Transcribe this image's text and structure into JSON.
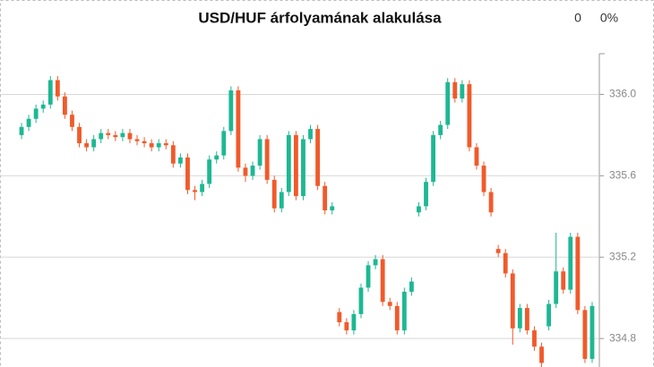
{
  "chart_data": {
    "type": "candlestick",
    "title": "USD/HUF árfolyamának alakulása",
    "change": "0",
    "change_percent": "0%",
    "up_color": "#1db893",
    "down_color": "#f15a2b",
    "ylim": [
      334.66,
      336.2
    ],
    "yticks": [
      334.8,
      335.2,
      335.6,
      {
        "value": 336,
        "label": "336.0"
      }
    ],
    "grid": true,
    "open": [
      335.8,
      335.84,
      335.88,
      335.93,
      335.95,
      336.07,
      335.99,
      335.9,
      335.84,
      335.76,
      335.74,
      335.78,
      335.81,
      335.8,
      335.79,
      335.81,
      335.78,
      335.77,
      335.76,
      335.74,
      335.76,
      335.75,
      335.66,
      335.69,
      335.53,
      335.52,
      335.56,
      335.68,
      335.7,
      335.82,
      336.02,
      335.64,
      335.6,
      335.65,
      335.78,
      335.58,
      335.44,
      335.52,
      335.8,
      335.5,
      335.78,
      335.83,
      335.55,
      335.43,
      334.93,
      334.88,
      334.84,
      334.92,
      335.05,
      335.16,
      335.19,
      334.98,
      334.96,
      334.84,
      335.03,
      335.42,
      335.45,
      335.57,
      335.8,
      335.85,
      336.06,
      335.98,
      336.05,
      335.74,
      335.65,
      335.52,
      335.24,
      335.22,
      335.12,
      334.85,
      334.95,
      334.84,
      334.76,
      334.86,
      334.97,
      335.13,
      335.04,
      335.3,
      334.94,
      334.7
    ],
    "high": [
      335.86,
      335.9,
      335.95,
      335.97,
      336.09,
      336.09,
      336.01,
      335.92,
      335.86,
      335.78,
      335.8,
      335.83,
      335.83,
      335.82,
      335.83,
      335.83,
      335.8,
      335.79,
      335.78,
      335.78,
      335.78,
      335.77,
      335.71,
      335.71,
      335.55,
      335.58,
      335.7,
      335.72,
      335.84,
      336.04,
      336.04,
      335.66,
      335.67,
      335.8,
      335.8,
      335.6,
      335.54,
      335.82,
      335.82,
      335.8,
      335.85,
      335.85,
      335.57,
      335.47,
      334.95,
      334.9,
      334.94,
      335.07,
      335.18,
      335.21,
      335.21,
      335.0,
      334.98,
      335.05,
      335.1,
      335.47,
      335.59,
      335.82,
      335.87,
      336.08,
      336.08,
      336.07,
      336.07,
      335.76,
      335.67,
      335.54,
      335.26,
      335.24,
      335.14,
      334.97,
      334.97,
      334.86,
      334.78,
      334.99,
      335.32,
      335.15,
      335.32,
      335.32,
      334.96,
      334.98
    ],
    "low": [
      335.78,
      335.82,
      335.86,
      335.91,
      335.93,
      335.97,
      335.88,
      335.82,
      335.74,
      335.72,
      335.72,
      335.76,
      335.78,
      335.77,
      335.77,
      335.76,
      335.75,
      335.74,
      335.72,
      335.72,
      335.73,
      335.64,
      335.64,
      335.51,
      335.48,
      335.5,
      335.54,
      335.66,
      335.68,
      335.8,
      335.62,
      335.57,
      335.58,
      335.63,
      335.56,
      335.42,
      335.42,
      335.5,
      335.48,
      335.48,
      335.76,
      335.53,
      335.41,
      335.41,
      334.86,
      334.82,
      334.82,
      334.9,
      335.03,
      335.14,
      334.96,
      334.94,
      334.82,
      334.82,
      335.01,
      335.4,
      335.43,
      335.55,
      335.78,
      335.83,
      335.96,
      335.96,
      335.72,
      335.63,
      335.5,
      335.4,
      335.2,
      335.1,
      334.77,
      334.83,
      334.82,
      334.74,
      334.66,
      334.84,
      334.95,
      335.02,
      335.02,
      334.92,
      334.68,
      334.68
    ],
    "close": [
      335.84,
      335.88,
      335.93,
      335.95,
      336.07,
      335.99,
      335.9,
      335.84,
      335.76,
      335.74,
      335.78,
      335.81,
      335.8,
      335.79,
      335.81,
      335.78,
      335.77,
      335.76,
      335.74,
      335.76,
      335.75,
      335.66,
      335.69,
      335.53,
      335.52,
      335.56,
      335.68,
      335.7,
      335.82,
      336.02,
      335.64,
      335.6,
      335.65,
      335.78,
      335.58,
      335.44,
      335.52,
      335.8,
      335.5,
      335.78,
      335.83,
      335.55,
      335.43,
      335.45,
      334.88,
      334.84,
      334.92,
      335.05,
      335.16,
      335.19,
      334.98,
      334.96,
      334.84,
      335.03,
      335.08,
      335.45,
      335.57,
      335.8,
      335.85,
      336.06,
      335.98,
      336.05,
      335.74,
      335.65,
      335.52,
      335.42,
      335.22,
      335.12,
      334.85,
      334.95,
      334.84,
      334.76,
      334.68,
      334.97,
      335.13,
      335.04,
      335.3,
      334.94,
      334.7,
      334.96
    ]
  }
}
